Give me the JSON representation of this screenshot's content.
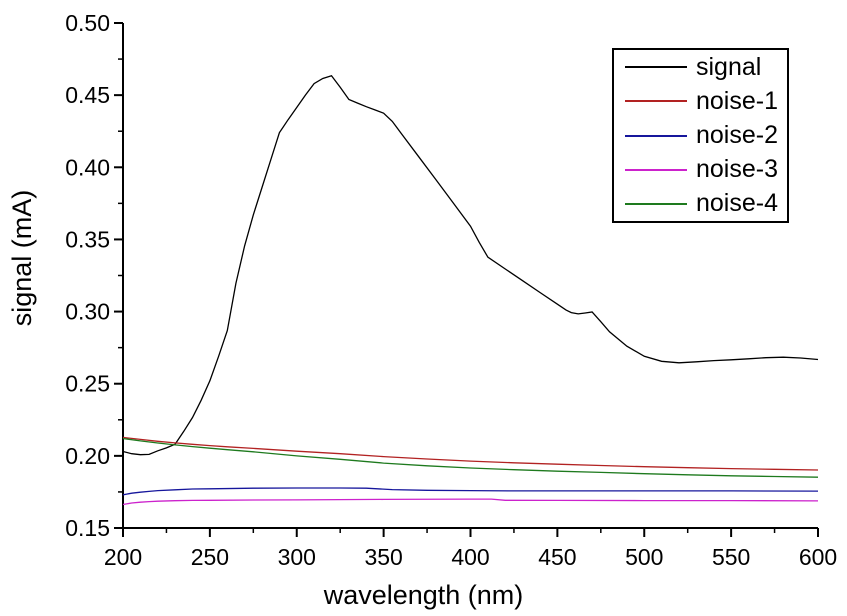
{
  "chart_data": {
    "type": "line",
    "title": "",
    "xlabel": "wavelength (nm)",
    "ylabel": "signal (mA)",
    "xlim": [
      200,
      600
    ],
    "ylim": [
      0.15,
      0.5
    ],
    "grid": false,
    "x_ticks": [
      200,
      250,
      300,
      350,
      400,
      450,
      500,
      550,
      600
    ],
    "x_tick_labels": [
      "200",
      "250",
      "300",
      "350",
      "400",
      "450",
      "500",
      "550",
      "600"
    ],
    "x_minor_ticks": [
      225,
      275,
      325,
      375,
      425,
      475,
      525,
      575
    ],
    "y_ticks": [
      0.15,
      0.2,
      0.25,
      0.3,
      0.35,
      0.4,
      0.45,
      0.5
    ],
    "y_tick_labels": [
      "0.15",
      "0.20",
      "0.25",
      "0.30",
      "0.35",
      "0.40",
      "0.45",
      "0.50"
    ],
    "y_minor_ticks": [
      0.175,
      0.225,
      0.275,
      0.325,
      0.375,
      0.425,
      0.475
    ],
    "legend": {
      "position": "top-right",
      "entries": [
        "signal",
        "noise-1",
        "noise-2",
        "noise-3",
        "noise-4"
      ]
    },
    "series": [
      {
        "name": "signal",
        "color": "#000000",
        "x": [
          200,
          205,
          210,
          215,
          220,
          225,
          230,
          235,
          240,
          245,
          250,
          255,
          260,
          265,
          270,
          275,
          280,
          285,
          290,
          295,
          300,
          305,
          310,
          315,
          320,
          325,
          330,
          335,
          340,
          345,
          350,
          355,
          360,
          370,
          380,
          390,
          400,
          405,
          410,
          420,
          430,
          440,
          450,
          455,
          458,
          462,
          466,
          470,
          475,
          480,
          490,
          500,
          510,
          520,
          530,
          540,
          550,
          560,
          570,
          580,
          590,
          600
        ],
        "y": [
          0.203,
          0.2015,
          0.2008,
          0.201,
          0.2035,
          0.2055,
          0.2081,
          0.217,
          0.2266,
          0.2386,
          0.2521,
          0.269,
          0.2868,
          0.3195,
          0.3455,
          0.367,
          0.386,
          0.405,
          0.424,
          0.433,
          0.4415,
          0.45,
          0.458,
          0.4615,
          0.4635,
          0.4555,
          0.447,
          0.4445,
          0.442,
          0.4398,
          0.4375,
          0.4318,
          0.4237,
          0.4076,
          0.3915,
          0.3754,
          0.3592,
          0.348,
          0.3377,
          0.3295,
          0.3214,
          0.3132,
          0.3051,
          0.301,
          0.2993,
          0.2984,
          0.299,
          0.2997,
          0.293,
          0.286,
          0.276,
          0.269,
          0.2655,
          0.2645,
          0.2652,
          0.266,
          0.2666,
          0.2673,
          0.268,
          0.2684,
          0.2678,
          0.2668
        ]
      },
      {
        "name": "noise-1",
        "color": "#B22222",
        "x": [
          200,
          210,
          220,
          230,
          240,
          250,
          260,
          275,
          300,
          325,
          350,
          375,
          400,
          425,
          450,
          475,
          500,
          525,
          550,
          575,
          600
        ],
        "y": [
          0.2128,
          0.2114,
          0.2101,
          0.209,
          0.208,
          0.2071,
          0.2063,
          0.2052,
          0.2032,
          0.2015,
          0.1995,
          0.1978,
          0.1964,
          0.1952,
          0.1942,
          0.1933,
          0.1925,
          0.1918,
          0.1912,
          0.1907,
          0.1902
        ]
      },
      {
        "name": "noise-2",
        "color": "#16169C",
        "x": [
          200,
          205,
          210,
          215,
          220,
          230,
          240,
          250,
          275,
          300,
          325,
          340,
          355,
          375,
          400,
          425,
          450,
          500,
          550,
          600
        ],
        "y": [
          0.173,
          0.1741,
          0.1748,
          0.1754,
          0.1759,
          0.1765,
          0.177,
          0.1772,
          0.1776,
          0.1777,
          0.1777,
          0.1776,
          0.1766,
          0.1761,
          0.1759,
          0.1757,
          0.1757,
          0.1757,
          0.1757,
          0.1756
        ]
      },
      {
        "name": "noise-3",
        "color": "#CC22CC",
        "x": [
          200,
          205,
          210,
          215,
          220,
          230,
          240,
          250,
          275,
          300,
          350,
          400,
          412,
          420,
          450,
          500,
          550,
          600
        ],
        "y": [
          0.1663,
          0.1673,
          0.1679,
          0.1683,
          0.1686,
          0.1689,
          0.1691,
          0.1692,
          0.1694,
          0.1695,
          0.1698,
          0.17,
          0.17,
          0.1692,
          0.1691,
          0.169,
          0.169,
          0.1688
        ]
      },
      {
        "name": "noise-4",
        "color": "#1E7A1E",
        "x": [
          200,
          210,
          220,
          230,
          240,
          250,
          260,
          275,
          300,
          325,
          350,
          375,
          400,
          425,
          450,
          475,
          500,
          525,
          550,
          575,
          600
        ],
        "y": [
          0.212,
          0.2104,
          0.2089,
          0.2076,
          0.2064,
          0.2053,
          0.2043,
          0.2028,
          0.2,
          0.1976,
          0.195,
          0.1931,
          0.1916,
          0.1904,
          0.1894,
          0.1885,
          0.1876,
          0.1869,
          0.1862,
          0.1857,
          0.1852
        ]
      }
    ]
  }
}
